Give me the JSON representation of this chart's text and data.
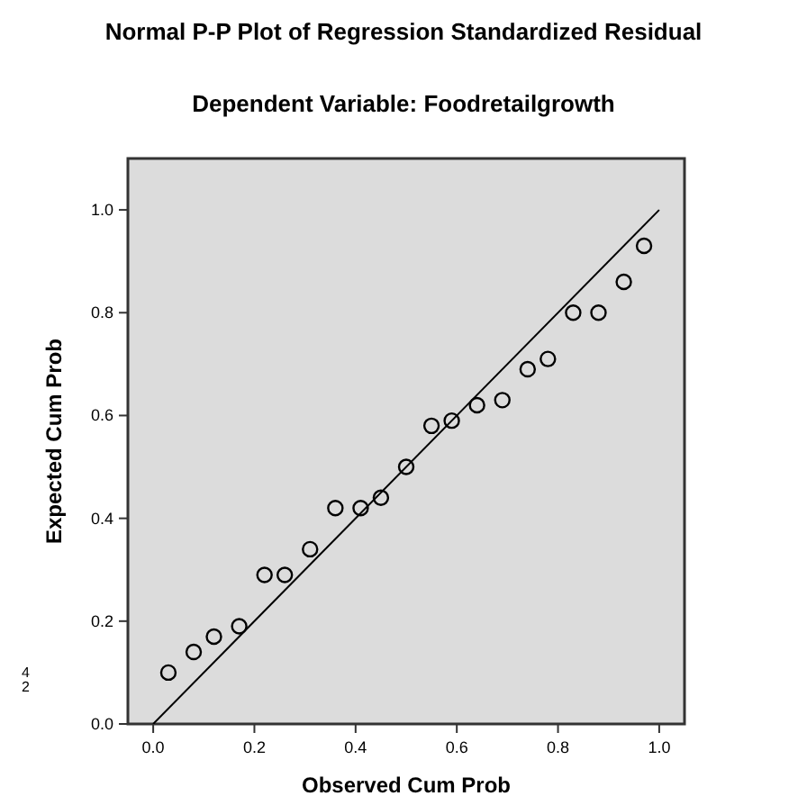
{
  "chart_data": {
    "type": "scatter",
    "title": "Normal P-P Plot of Regression Standardized Residual",
    "subtitle": "Dependent Variable: Foodretailgrowth",
    "xlabel": "Observed Cum Prob",
    "ylabel": "Expected Cum Prob",
    "series": [
      {
        "color": "#000000",
        "marker": "circle",
        "x": [
          0.03,
          0.08,
          0.12,
          0.17,
          0.22,
          0.26,
          0.31,
          0.36,
          0.41,
          0.45,
          0.5,
          0.55,
          0.59,
          0.64,
          0.69,
          0.74,
          0.78,
          0.83,
          0.88,
          0.93,
          0.97
        ],
        "values": [
          0.1,
          0.14,
          0.17,
          0.19,
          0.29,
          0.29,
          0.34,
          0.42,
          0.42,
          0.44,
          0.5,
          0.58,
          0.59,
          0.62,
          0.63,
          0.69,
          0.71,
          0.8,
          0.8,
          0.86,
          0.93
        ]
      },
      {
        "type": "line",
        "color": "#000000",
        "x": [
          0,
          1
        ],
        "values": [
          0,
          1
        ]
      }
    ],
    "xlim": [
      -0.05,
      1.05
    ],
    "ylim": [
      0,
      1.1
    ],
    "xticks": [
      {
        "value": 0,
        "label": "0.0"
      },
      {
        "value": 0.2,
        "label": "0.2"
      },
      {
        "value": 0.4,
        "label": "0.4"
      },
      {
        "value": 0.6,
        "label": "0.6"
      },
      {
        "value": 0.8,
        "label": "0.8"
      },
      {
        "value": 1,
        "label": "1.0"
      }
    ],
    "yticks": [
      {
        "value": 0,
        "label": "0.0"
      },
      {
        "value": 0.2,
        "label": "0.2"
      },
      {
        "value": 0.4,
        "label": "0.4"
      },
      {
        "value": 0.6,
        "label": "0.6"
      },
      {
        "value": 0.8,
        "label": "0.8"
      },
      {
        "value": 1,
        "label": "1.0"
      }
    ],
    "grid": false,
    "annotations": [
      "4",
      "2"
    ]
  }
}
